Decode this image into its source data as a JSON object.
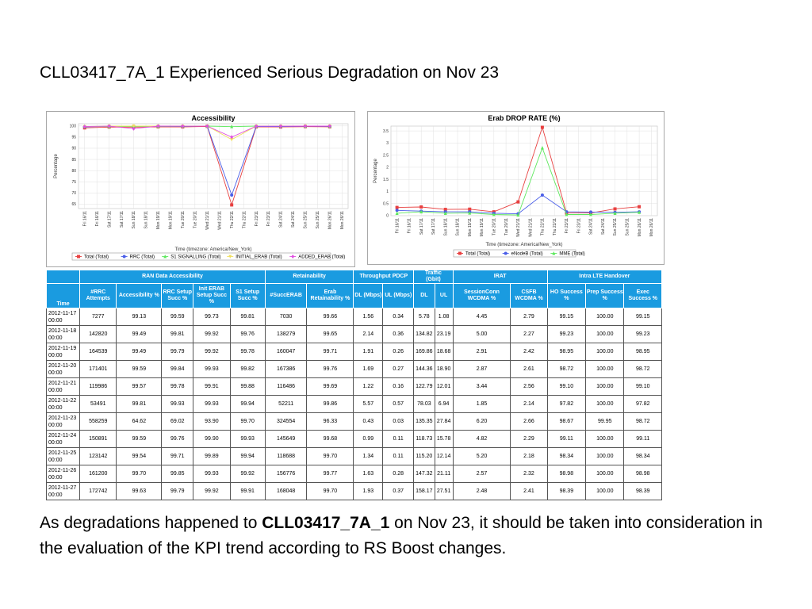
{
  "slide": {
    "title": "CLL03417_7A_1 Experienced Serious Degradation on Nov 23",
    "bottom_text_1": "As degradations happened to ",
    "bottom_bold": "CLL03417_7A_1",
    "bottom_text_2": " on Nov 23, it should be taken into consideration in the evaluation of the KPI trend according to RS Boost changes."
  },
  "chart_data": [
    {
      "type": "line",
      "title": "Accessibility",
      "xlabel": "Time (timezone: America/New_York)",
      "ylabel": "Percentage",
      "ylim": [
        63,
        101
      ],
      "yticks": [
        100,
        95,
        90,
        85,
        80,
        75,
        70,
        65
      ],
      "categories": [
        "Fri 16/11",
        "Fri 16/11",
        "Sat 17/11",
        "Sat 17/11",
        "Sun 18/11",
        "Sun 18/11",
        "Mon 19/11",
        "Mon 19/11",
        "Tue 20/11",
        "Tue 20/11",
        "Wed 21/11",
        "Wed 21/11",
        "Thu 22/11",
        "Thu 22/11",
        "Fri 23/11",
        "Fri 23/11",
        "Sat 24/11",
        "Sat 24/11",
        "Sun 25/11",
        "Sun 25/11",
        "Mon 26/11",
        "Mon 26/11"
      ],
      "grid": true,
      "legend": "bottom",
      "series": [
        {
          "name": "Total (Total)",
          "color": "#e84040",
          "marker": "square",
          "x": [
            0,
            2,
            4,
            6,
            8,
            10,
            12,
            14,
            16,
            18,
            20
          ],
          "values": [
            99.13,
            99.49,
            99.49,
            99.59,
            99.57,
            99.81,
            64.62,
            99.59,
            99.54,
            99.7,
            99.63
          ]
        },
        {
          "name": "RRC (Total)",
          "color": "#4a5ee8",
          "marker": "circle",
          "x": [
            0,
            2,
            4,
            6,
            8,
            10,
            12,
            14,
            16,
            18,
            20
          ],
          "values": [
            99.59,
            99.81,
            99.79,
            99.84,
            99.78,
            99.93,
            69.02,
            99.76,
            99.71,
            99.85,
            99.79
          ]
        },
        {
          "name": "S1 SIGNALLING (Total)",
          "color": "#5ee85e",
          "marker": "triangle",
          "x": [
            0,
            2,
            4,
            6,
            8,
            10,
            12,
            14,
            16,
            18,
            20
          ],
          "values": [
            99.81,
            99.76,
            99.78,
            99.82,
            99.88,
            99.94,
            99.7,
            99.93,
            99.94,
            99.92,
            99.91
          ]
        },
        {
          "name": "INITIAL_ERAB (Total)",
          "color": "#f0e060",
          "marker": "triangle-down",
          "x": [
            0,
            2,
            4,
            6,
            8,
            10,
            12,
            14,
            16,
            18,
            20
          ],
          "values": [
            99.73,
            99.92,
            99.92,
            99.93,
            99.91,
            99.93,
            93.9,
            99.9,
            99.89,
            99.93,
            99.92
          ]
        },
        {
          "name": "ADDED_ERAB (Total)",
          "color": "#e050e0",
          "marker": "diamond",
          "x": [
            0,
            2,
            4,
            6,
            8,
            10,
            12,
            14,
            16,
            18,
            20
          ],
          "values": [
            99.73,
            99.92,
            98.8,
            99.93,
            99.91,
            99.93,
            95.0,
            99.9,
            99.89,
            99.93,
            99.92
          ]
        }
      ]
    },
    {
      "type": "line",
      "title": "Erab DROP RATE (%)",
      "xlabel": "Time (timezone: America/New_York)",
      "ylabel": "Percentage",
      "ylim": [
        0,
        3.7
      ],
      "yticks": [
        3.5,
        3.0,
        2.5,
        2.0,
        1.5,
        1.0,
        0.5,
        0.0
      ],
      "categories": [
        "Fri 16/11",
        "Fri 16/11",
        "Sat 17/11",
        "Sat 17/11",
        "Sun 18/11",
        "Sun 18/11",
        "Mon 19/11",
        "Mon 19/11",
        "Tue 20/11",
        "Tue 20/11",
        "Wed 21/11",
        "Wed 21/11",
        "Thu 22/11",
        "Thu 22/11",
        "Fri 23/11",
        "Fri 23/11",
        "Sat 24/11",
        "Sat 24/11",
        "Sun 25/11",
        "Sun 25/11",
        "Mon 26/11",
        "Mon 26/11"
      ],
      "grid": true,
      "legend": "bottom",
      "series": [
        {
          "name": "Total (Total)",
          "color": "#e84040",
          "marker": "square",
          "x": [
            0,
            2,
            4,
            6,
            8,
            10,
            12,
            14,
            16,
            18,
            20
          ],
          "values": [
            0.34,
            0.36,
            0.26,
            0.27,
            0.16,
            0.57,
            3.65,
            0.11,
            0.11,
            0.28,
            0.37
          ]
        },
        {
          "name": "eNodeB (Total)",
          "color": "#4a5ee8",
          "marker": "circle",
          "x": [
            0,
            2,
            4,
            6,
            8,
            10,
            12,
            14,
            16,
            18,
            20
          ],
          "values": [
            0.22,
            0.19,
            0.16,
            0.16,
            0.1,
            0.08,
            0.85,
            0.16,
            0.15,
            0.14,
            0.16
          ]
        },
        {
          "name": "MME (Total)",
          "color": "#5ee85e",
          "marker": "triangle",
          "x": [
            0,
            2,
            4,
            6,
            8,
            10,
            12,
            14,
            16,
            18,
            20
          ],
          "values": [
            0.1,
            0.16,
            0.1,
            0.11,
            0.05,
            0.03,
            2.8,
            0.05,
            0.05,
            0.1,
            0.14
          ]
        }
      ]
    }
  ],
  "table": {
    "group_headers": [
      "RAN Data Accessibility",
      "Retainability",
      "Throughput PDCP",
      "Traffic\n(Gbit)",
      "IRAT",
      "Intra LTE Handover"
    ],
    "column_headers": [
      "Time",
      "#RRC Attempts",
      "Accessibility %",
      "RRC Setup Succ %",
      "Init ERAB Setup Succ %",
      "S1 Setup Succ %",
      "#SuccERAB",
      "Erab Retainability %",
      "DL (Mbps)",
      "UL (Mbps)",
      "DL",
      "UL",
      "SessionConn WCDMA %",
      "CSFB WCDMA %",
      "HO Success %",
      "Prep Success %",
      "Exec Success %"
    ],
    "rows": [
      [
        "2012-11-17 00:00",
        "7277",
        "99.13",
        "99.59",
        "99.73",
        "99.81",
        "7030",
        "99.66",
        "1.56",
        "0.34",
        "5.78",
        "1.08",
        "4.45",
        "2.79",
        "99.15",
        "100.00",
        "99.15"
      ],
      [
        "2012-11-18 00:00",
        "142820",
        "99.49",
        "99.81",
        "99.92",
        "99.76",
        "138279",
        "99.65",
        "2.14",
        "0.36",
        "134.82",
        "23.19",
        "5.00",
        "2.27",
        "99.23",
        "100.00",
        "99.23"
      ],
      [
        "2012-11-19 00:00",
        "164539",
        "99.49",
        "99.79",
        "99.92",
        "99.78",
        "160047",
        "99.71",
        "1.91",
        "0.26",
        "169.86",
        "18.68",
        "2.91",
        "2.42",
        "98.95",
        "100.00",
        "98.95"
      ],
      [
        "2012-11-20 00:00",
        "171401",
        "99.59",
        "99.84",
        "99.93",
        "99.82",
        "167386",
        "99.76",
        "1.69",
        "0.27",
        "144.36",
        "18.90",
        "2.87",
        "2.61",
        "98.72",
        "100.00",
        "98.72"
      ],
      [
        "2012-11-21 00:00",
        "119986",
        "99.57",
        "99.78",
        "99.91",
        "99.88",
        "116486",
        "99.69",
        "1.22",
        "0.16",
        "122.79",
        "12.01",
        "3.44",
        "2.56",
        "99.10",
        "100.00",
        "99.10"
      ],
      [
        "2012-11-22 00:00",
        "53491",
        "99.81",
        "99.93",
        "99.93",
        "99.94",
        "52211",
        "99.86",
        "5.57",
        "0.57",
        "78.03",
        "6.94",
        "1.85",
        "2.14",
        "97.82",
        "100.00",
        "97.82"
      ],
      [
        "2012-11-23 00:00",
        "558259",
        "64.62",
        "69.02",
        "93.90",
        "99.70",
        "324554",
        "96.33",
        "0.43",
        "0.03",
        "135.35",
        "27.84",
        "6.20",
        "2.66",
        "98.67",
        "99.95",
        "98.72"
      ],
      [
        "2012-11-24 00:00",
        "150891",
        "99.59",
        "99.76",
        "99.90",
        "99.93",
        "145649",
        "99.68",
        "0.99",
        "0.11",
        "118.73",
        "15.78",
        "4.82",
        "2.29",
        "99.11",
        "100.00",
        "99.11"
      ],
      [
        "2012-11-25 00:00",
        "123142",
        "99.54",
        "99.71",
        "99.89",
        "99.94",
        "118688",
        "99.70",
        "1.34",
        "0.11",
        "115.20",
        "12.14",
        "5.20",
        "2.18",
        "98.34",
        "100.00",
        "98.34"
      ],
      [
        "2012-11-26 00:00",
        "161200",
        "99.70",
        "99.85",
        "99.93",
        "99.92",
        "156776",
        "99.77",
        "1.63",
        "0.28",
        "147.32",
        "21.11",
        "2.57",
        "2.32",
        "98.98",
        "100.00",
        "98.98"
      ],
      [
        "2012-11-27 00:00",
        "172742",
        "99.63",
        "99.79",
        "99.92",
        "99.91",
        "168048",
        "99.70",
        "1.93",
        "0.37",
        "158.17",
        "27.51",
        "2.48",
        "2.41",
        "98.39",
        "100.00",
        "98.39"
      ]
    ]
  }
}
